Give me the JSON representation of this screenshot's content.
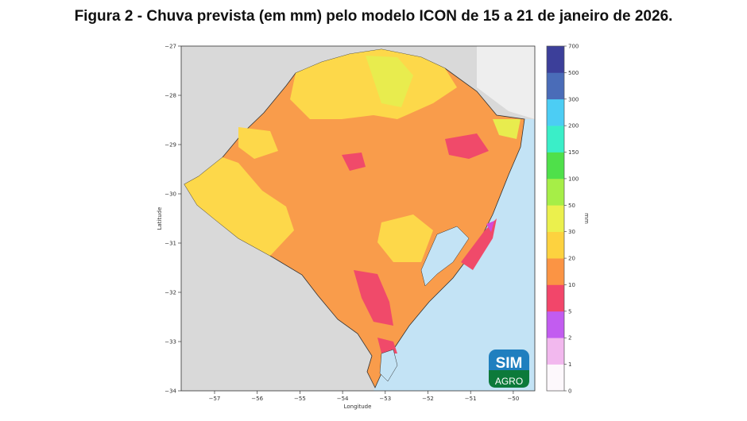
{
  "title": "Figura 2 - Chuva prevista (em mm) pelo modelo ICON de 15 a 21 de janeiro de 2026.",
  "map": {
    "xlabel": "Longitude",
    "ylabel": "Latitude",
    "x_ticks": [
      "−57",
      "−56",
      "−55",
      "−54",
      "−53",
      "−52",
      "−51",
      "−50"
    ],
    "y_ticks": [
      "−27",
      "−28",
      "−29",
      "−30",
      "−31",
      "−32",
      "−33",
      "−34"
    ],
    "colorbar": {
      "label": "mm",
      "ticks": [
        "0",
        "1",
        "2",
        "5",
        "10",
        "20",
        "30",
        "50",
        "100",
        "150",
        "200",
        "300",
        "500",
        "700"
      ],
      "colors": [
        "#fdf8fc",
        "#f2b8ee",
        "#c25cf0",
        "#f2466a",
        "#fb9444",
        "#fdd23f",
        "#ebf04d",
        "#a6ee47",
        "#4fe04a",
        "#3aeec8",
        "#4ccdf4",
        "#4a6cb8",
        "#3c3f9a"
      ]
    },
    "colors": {
      "land_other": "#d9d9d9",
      "ocean": "#c3e3f5",
      "base_rain": "#f99c4b",
      "yellow": "#fdd84a",
      "lime": "#e8ec4e",
      "red": "#f04a6a",
      "magenta": "#d44ad8"
    }
  },
  "logo": {
    "line1": "SIM",
    "line2": "AGRO"
  }
}
